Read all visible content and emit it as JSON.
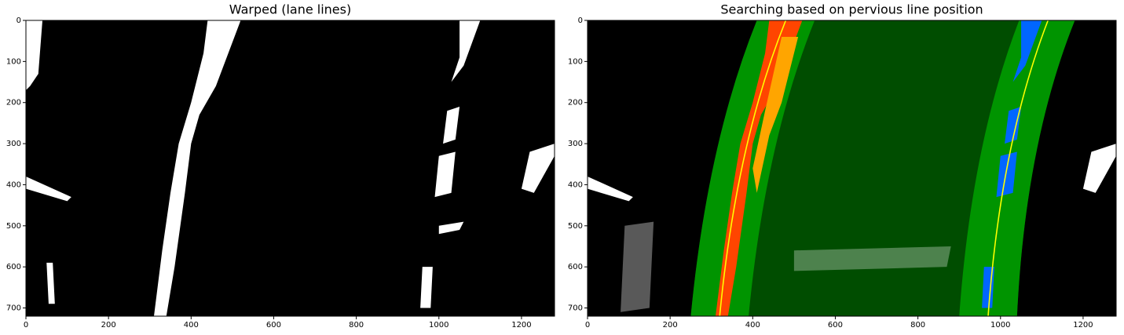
{
  "chart_data": [
    {
      "type": "image",
      "title": "Warped (lane lines)",
      "xlim": [
        0,
        1280
      ],
      "ylim": [
        720,
        0
      ],
      "xticks": [
        0,
        200,
        400,
        600,
        800,
        1000,
        1200
      ],
      "yticks": [
        0,
        100,
        200,
        300,
        400,
        500,
        600,
        700
      ]
    },
    {
      "type": "image",
      "title": "Searching based on pervious line position",
      "xlim": [
        0,
        1280
      ],
      "ylim": [
        720,
        0
      ],
      "xticks": [
        0,
        200,
        400,
        600,
        800,
        1000,
        1200
      ],
      "yticks": [
        0,
        100,
        200,
        300,
        400,
        500,
        600,
        700
      ]
    }
  ]
}
